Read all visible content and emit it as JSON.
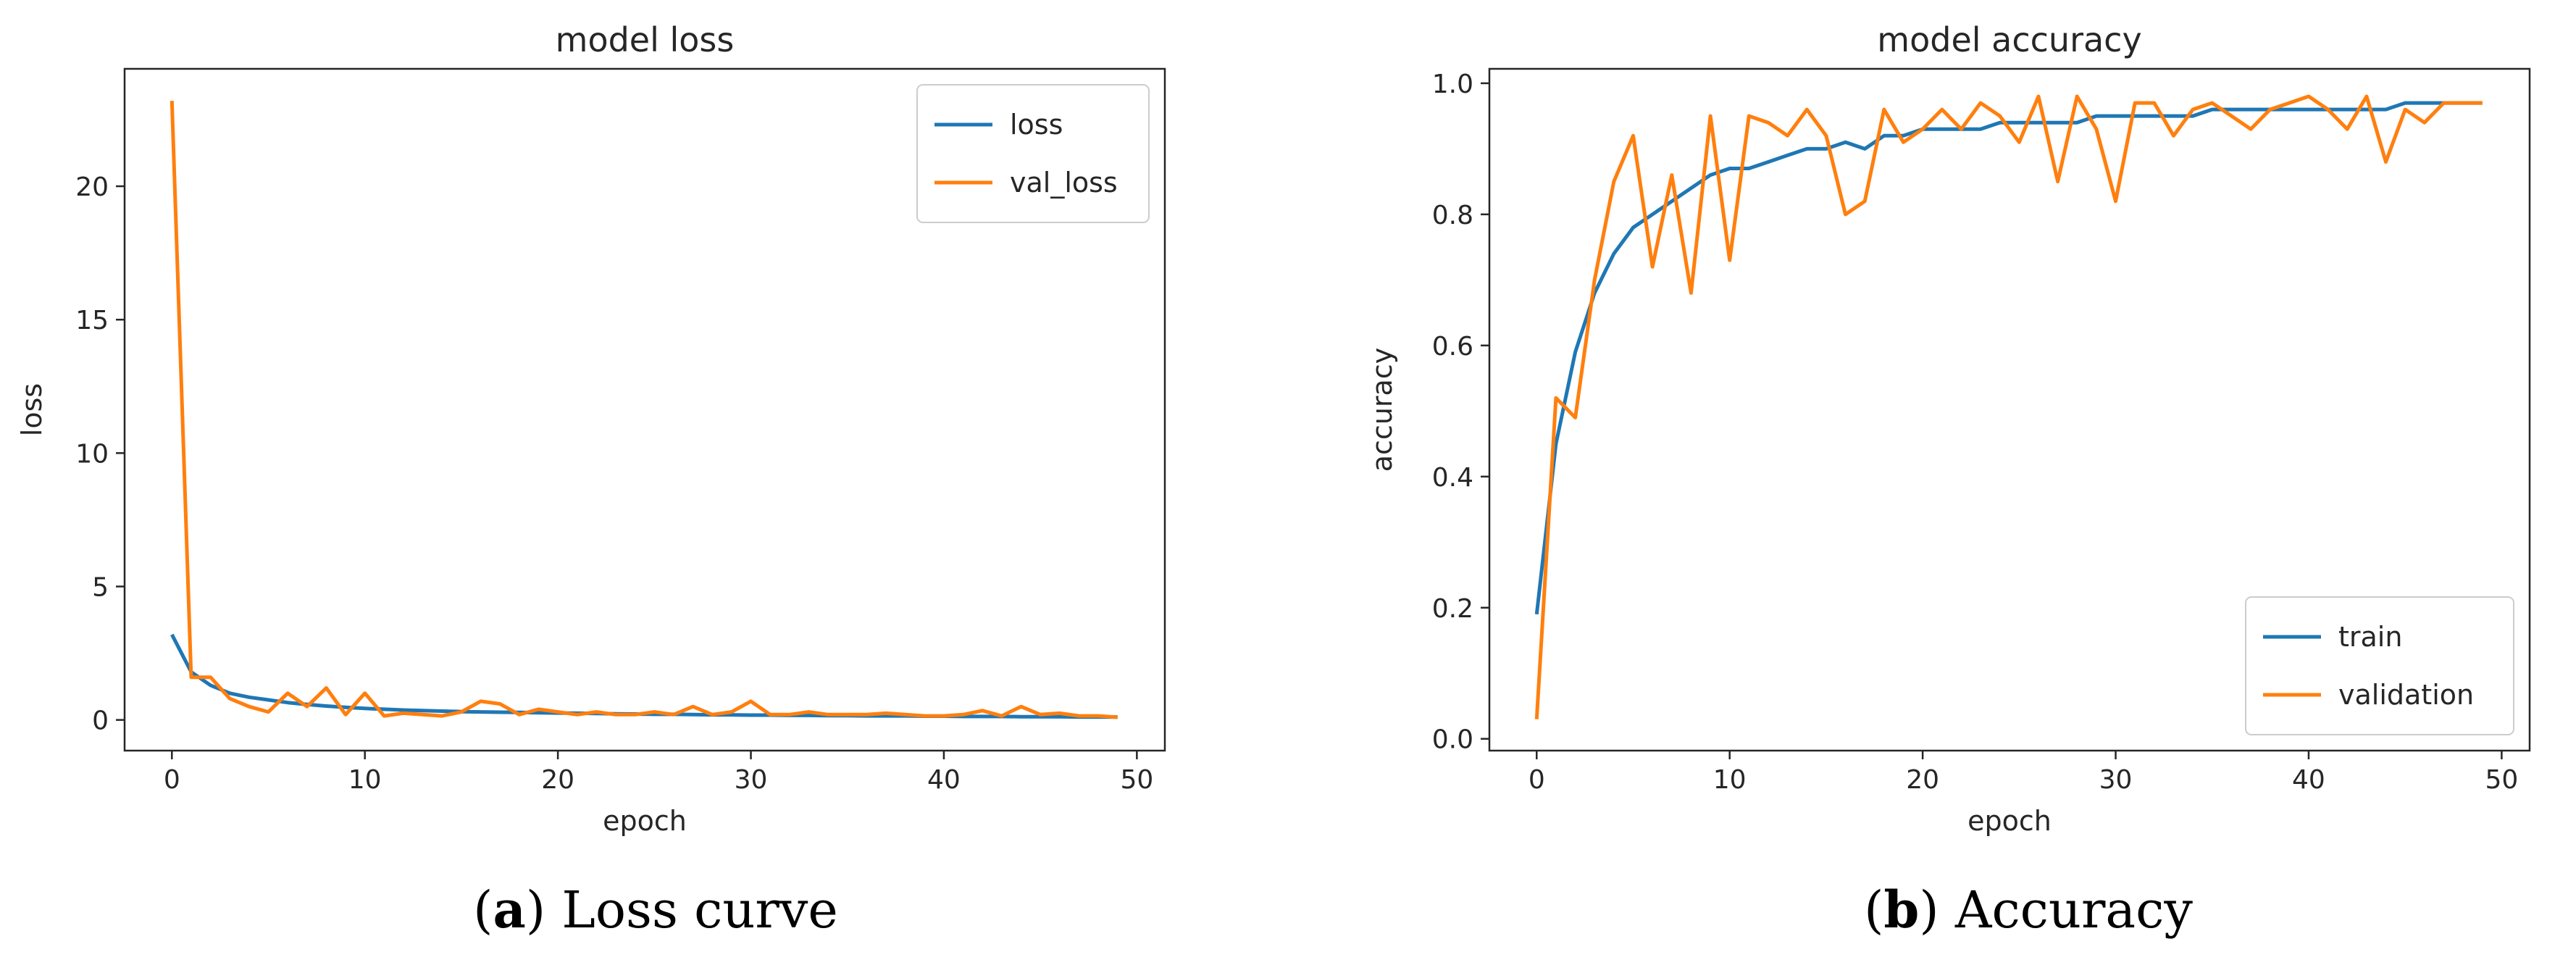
{
  "colors": {
    "series1": "#1f77b4",
    "series2": "#ff7f0e",
    "axes": "#262626"
  },
  "chart_data": [
    {
      "type": "line",
      "title": "model loss",
      "xlabel": "epoch",
      "ylabel": "loss",
      "xlim": [
        -2.45,
        51.45
      ],
      "ylim": [
        -1.15,
        24.4
      ],
      "xticks": [
        0,
        10,
        20,
        30,
        40,
        50
      ],
      "yticks": [
        0,
        5,
        10,
        15,
        20
      ],
      "legend": "top-right",
      "grid": false,
      "series": [
        {
          "name": "loss",
          "color": "#1f77b4",
          "x": [
            0,
            1,
            2,
            3,
            4,
            5,
            6,
            7,
            8,
            9,
            10,
            11,
            12,
            13,
            14,
            15,
            16,
            17,
            18,
            19,
            20,
            21,
            22,
            23,
            24,
            25,
            26,
            27,
            28,
            29,
            30,
            31,
            32,
            33,
            34,
            35,
            36,
            37,
            38,
            39,
            40,
            41,
            42,
            43,
            44,
            45,
            46,
            47,
            48,
            49
          ],
          "values": [
            3.2,
            1.8,
            1.3,
            1.0,
            0.85,
            0.75,
            0.65,
            0.58,
            0.52,
            0.47,
            0.43,
            0.4,
            0.37,
            0.35,
            0.33,
            0.31,
            0.3,
            0.29,
            0.28,
            0.27,
            0.26,
            0.25,
            0.24,
            0.23,
            0.22,
            0.21,
            0.21,
            0.2,
            0.19,
            0.19,
            0.18,
            0.18,
            0.17,
            0.17,
            0.16,
            0.16,
            0.15,
            0.15,
            0.15,
            0.14,
            0.14,
            0.13,
            0.13,
            0.13,
            0.12,
            0.12,
            0.12,
            0.11,
            0.11,
            0.11
          ]
        },
        {
          "name": "val_loss",
          "color": "#ff7f0e",
          "x": [
            0,
            1,
            2,
            3,
            4,
            5,
            6,
            7,
            8,
            9,
            10,
            11,
            12,
            13,
            14,
            15,
            16,
            17,
            18,
            19,
            20,
            21,
            22,
            23,
            24,
            25,
            26,
            27,
            28,
            29,
            30,
            31,
            32,
            33,
            34,
            35,
            36,
            37,
            38,
            39,
            40,
            41,
            42,
            43,
            44,
            45,
            46,
            47,
            48,
            49
          ],
          "values": [
            23.2,
            1.6,
            1.6,
            0.8,
            0.5,
            0.3,
            1.0,
            0.5,
            1.2,
            0.2,
            1.0,
            0.15,
            0.25,
            0.2,
            0.15,
            0.3,
            0.7,
            0.6,
            0.2,
            0.4,
            0.3,
            0.2,
            0.3,
            0.2,
            0.2,
            0.3,
            0.2,
            0.5,
            0.2,
            0.3,
            0.7,
            0.2,
            0.2,
            0.3,
            0.2,
            0.2,
            0.2,
            0.25,
            0.2,
            0.15,
            0.15,
            0.2,
            0.35,
            0.15,
            0.5,
            0.2,
            0.25,
            0.15,
            0.15,
            0.1
          ]
        }
      ]
    },
    {
      "type": "line",
      "title": "model accuracy",
      "xlabel": "epoch",
      "ylabel": "accuracy",
      "xlim": [
        -2.45,
        51.45
      ],
      "ylim": [
        -0.018,
        1.022
      ],
      "xticks": [
        0,
        10,
        20,
        30,
        40,
        50
      ],
      "yticks": [
        0.0,
        0.2,
        0.4,
        0.6,
        0.8,
        1.0
      ],
      "legend": "bottom-right",
      "grid": false,
      "series": [
        {
          "name": "train",
          "color": "#1f77b4",
          "x": [
            0,
            1,
            2,
            3,
            4,
            5,
            6,
            7,
            8,
            9,
            10,
            11,
            12,
            13,
            14,
            15,
            16,
            17,
            18,
            19,
            20,
            21,
            22,
            23,
            24,
            25,
            26,
            27,
            28,
            29,
            30,
            31,
            32,
            33,
            34,
            35,
            36,
            37,
            38,
            39,
            40,
            41,
            42,
            43,
            44,
            45,
            46,
            47,
            48,
            49
          ],
          "values": [
            0.19,
            0.45,
            0.59,
            0.68,
            0.74,
            0.78,
            0.8,
            0.82,
            0.84,
            0.86,
            0.87,
            0.87,
            0.88,
            0.89,
            0.9,
            0.9,
            0.91,
            0.9,
            0.92,
            0.92,
            0.93,
            0.93,
            0.93,
            0.93,
            0.94,
            0.94,
            0.94,
            0.94,
            0.94,
            0.95,
            0.95,
            0.95,
            0.95,
            0.95,
            0.95,
            0.96,
            0.96,
            0.96,
            0.96,
            0.96,
            0.96,
            0.96,
            0.96,
            0.96,
            0.96,
            0.97,
            0.97,
            0.97,
            0.97,
            0.97
          ]
        },
        {
          "name": "validation",
          "color": "#ff7f0e",
          "x": [
            0,
            1,
            2,
            3,
            4,
            5,
            6,
            7,
            8,
            9,
            10,
            11,
            12,
            13,
            14,
            15,
            16,
            17,
            18,
            19,
            20,
            21,
            22,
            23,
            24,
            25,
            26,
            27,
            28,
            29,
            30,
            31,
            32,
            33,
            34,
            35,
            36,
            37,
            38,
            39,
            40,
            41,
            42,
            43,
            44,
            45,
            46,
            47,
            48,
            49
          ],
          "values": [
            0.03,
            0.52,
            0.49,
            0.7,
            0.85,
            0.92,
            0.72,
            0.86,
            0.68,
            0.95,
            0.73,
            0.95,
            0.94,
            0.92,
            0.96,
            0.92,
            0.8,
            0.82,
            0.96,
            0.91,
            0.93,
            0.96,
            0.93,
            0.97,
            0.95,
            0.91,
            0.98,
            0.85,
            0.98,
            0.93,
            0.82,
            0.97,
            0.97,
            0.92,
            0.96,
            0.97,
            0.95,
            0.93,
            0.96,
            0.97,
            0.98,
            0.96,
            0.93,
            0.98,
            0.88,
            0.96,
            0.94,
            0.97,
            0.97,
            0.97
          ]
        }
      ]
    }
  ],
  "captions": [
    {
      "label": "a",
      "text": " Loss curve"
    },
    {
      "label": "b",
      "text": " Accuracy"
    }
  ]
}
